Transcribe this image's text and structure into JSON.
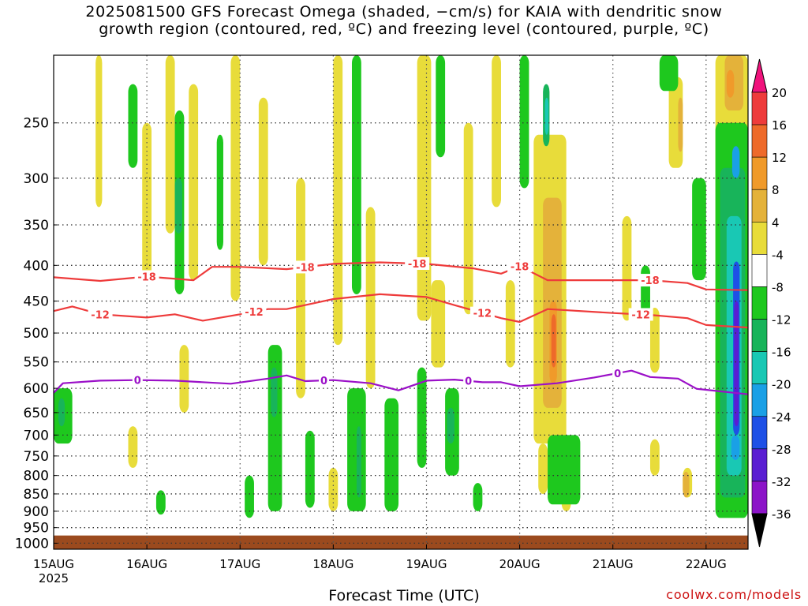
{
  "title": {
    "line1": "2025081500 GFS Forecast Omega (shaded, −cm/s) for KAIA with dendritic snow",
    "line2": "growth region (contoured, red, ºC) and freezing level (contoured, purple, ºC)"
  },
  "xlabel": "Forecast Time (UTC)",
  "credit": "coolwx.com/models",
  "chart_data": {
    "type": "heatmap",
    "title": "2025081500 GFS Forecast Omega (shaded, −cm/s) for KAIA with dendritic snow growth region (contoured, red, ºC) and freezing level (contoured, purple, ºC)",
    "xlabel": "Forecast Time (UTC)",
    "ylabel": "",
    "x_ticks": [
      {
        "label": "15AUG",
        "sub": "2025",
        "day": 0
      },
      {
        "label": "16AUG",
        "day": 1
      },
      {
        "label": "17AUG",
        "day": 2
      },
      {
        "label": "18AUG",
        "day": 3
      },
      {
        "label": "19AUG",
        "day": 4
      },
      {
        "label": "20AUG",
        "day": 5
      },
      {
        "label": "21AUG",
        "day": 6
      },
      {
        "label": "22AUG",
        "day": 7
      }
    ],
    "xlim_days": [
      0,
      7.45
    ],
    "y_ticks": [
      250,
      300,
      350,
      400,
      450,
      500,
      550,
      600,
      650,
      700,
      750,
      800,
      850,
      900,
      950,
      1000
    ],
    "ylim_hpa": [
      200,
      1020
    ],
    "y_scale": "log-pressure, inverted",
    "grid": true,
    "terrain_below_hpa": 975,
    "colorbar": {
      "labels": [
        "20",
        "16",
        "12",
        "8",
        "4",
        "-4",
        "-8",
        "-12",
        "-16",
        "-20",
        "-24",
        "-28",
        "-32",
        "-36"
      ],
      "colors": [
        "#f0137c",
        "#ee3b3b",
        "#ee6a2a",
        "#f09a2a",
        "#e4b23a",
        "#e8dc3a",
        "#ffffff",
        "#1ec81e",
        "#18b45a",
        "#19c8b4",
        "#1aa0e6",
        "#1e50e6",
        "#5a1ed2",
        "#8c14c8",
        "#a0a0a0",
        "#000000"
      ]
    },
    "contours": [
      {
        "label": "-18",
        "color": "#ee3b3b",
        "label_days": [
          1.0,
          2.7,
          3.9,
          5.0,
          6.4
        ],
        "points": [
          [
            0,
            416
          ],
          [
            0.5,
            421
          ],
          [
            1.0,
            415
          ],
          [
            1.5,
            420
          ],
          [
            1.7,
            402
          ],
          [
            2.0,
            402
          ],
          [
            2.5,
            405
          ],
          [
            3.0,
            398
          ],
          [
            3.5,
            396
          ],
          [
            4.0,
            398
          ],
          [
            4.5,
            404
          ],
          [
            4.8,
            411
          ],
          [
            5.0,
            401
          ],
          [
            5.3,
            420
          ],
          [
            6.0,
            420
          ],
          [
            6.4,
            420
          ],
          [
            6.8,
            424
          ],
          [
            7.0,
            433
          ],
          [
            7.45,
            434
          ]
        ]
      },
      {
        "label": "-12",
        "color": "#ee3b3b",
        "label_days": [
          0.5,
          2.15,
          4.6,
          6.3
        ],
        "points": [
          [
            0,
            465
          ],
          [
            0.2,
            458
          ],
          [
            0.5,
            470
          ],
          [
            1.0,
            475
          ],
          [
            1.3,
            470
          ],
          [
            1.6,
            480
          ],
          [
            2.0,
            470
          ],
          [
            2.3,
            462
          ],
          [
            2.5,
            462
          ],
          [
            3.0,
            447
          ],
          [
            3.5,
            440
          ],
          [
            4.0,
            444
          ],
          [
            4.3,
            456
          ],
          [
            4.8,
            476
          ],
          [
            5.0,
            482
          ],
          [
            5.3,
            462
          ],
          [
            6.0,
            468
          ],
          [
            6.4,
            471
          ],
          [
            6.8,
            476
          ],
          [
            7.0,
            487
          ],
          [
            7.45,
            491
          ]
        ]
      },
      {
        "label": "0",
        "color": "#9b10c8",
        "label_days": [
          0.9,
          2.9,
          4.45,
          6.05
        ],
        "points": [
          [
            0,
            609
          ],
          [
            0.1,
            590
          ],
          [
            0.5,
            585
          ],
          [
            0.9,
            584
          ],
          [
            1.3,
            585
          ],
          [
            1.9,
            591
          ],
          [
            2.3,
            581
          ],
          [
            2.5,
            575
          ],
          [
            2.7,
            586
          ],
          [
            3.0,
            584
          ],
          [
            3.4,
            590
          ],
          [
            3.7,
            604
          ],
          [
            4.0,
            585
          ],
          [
            4.3,
            583
          ],
          [
            4.6,
            588
          ],
          [
            4.8,
            588
          ],
          [
            5.0,
            596
          ],
          [
            5.4,
            590
          ],
          [
            5.8,
            579
          ],
          [
            6.2,
            566
          ],
          [
            6.4,
            578
          ],
          [
            6.7,
            581
          ],
          [
            6.9,
            601
          ],
          [
            7.0,
            603
          ],
          [
            7.45,
            612
          ]
        ]
      }
    ],
    "omega_regions": [
      {
        "bin": "4 to 8",
        "d0": 0.45,
        "d1": 0.52,
        "p0": 200,
        "p1": 330
      },
      {
        "bin": "4 to 8",
        "d0": 0.95,
        "d1": 1.05,
        "p0": 250,
        "p1": 420
      },
      {
        "bin": "4 to 8",
        "d0": 1.2,
        "d1": 1.3,
        "p0": 200,
        "p1": 360
      },
      {
        "bin": "4 to 8",
        "d0": 1.45,
        "d1": 1.55,
        "p0": 220,
        "p1": 420
      },
      {
        "bin": "4 to 8",
        "d0": 1.9,
        "d1": 2.0,
        "p0": 200,
        "p1": 450
      },
      {
        "bin": "4 to 8",
        "d0": 2.2,
        "d1": 2.3,
        "p0": 230,
        "p1": 400
      },
      {
        "bin": "4 to 8",
        "d0": 2.6,
        "d1": 2.7,
        "p0": 300,
        "p1": 620
      },
      {
        "bin": "4 to 8",
        "d0": 3.0,
        "d1": 3.1,
        "p0": 200,
        "p1": 520
      },
      {
        "bin": "4 to 8",
        "d0": 3.35,
        "d1": 3.45,
        "p0": 330,
        "p1": 600
      },
      {
        "bin": "4 to 8",
        "d0": 3.9,
        "d1": 4.05,
        "p0": 200,
        "p1": 480
      },
      {
        "bin": "4 to 8",
        "d0": 4.05,
        "d1": 4.2,
        "p0": 420,
        "p1": 560
      },
      {
        "bin": "4 to 8",
        "d0": 4.4,
        "d1": 4.5,
        "p0": 250,
        "p1": 470
      },
      {
        "bin": "4 to 8",
        "d0": 4.7,
        "d1": 4.8,
        "p0": 200,
        "p1": 330
      },
      {
        "bin": "4 to 8",
        "d0": 4.85,
        "d1": 4.95,
        "p0": 420,
        "p1": 560
      },
      {
        "bin": "4 to 8",
        "d0": 5.15,
        "d1": 5.5,
        "p0": 260,
        "p1": 720
      },
      {
        "bin": "4 to 8",
        "d0": 6.1,
        "d1": 6.2,
        "p0": 340,
        "p1": 480
      },
      {
        "bin": "4 to 8",
        "d0": 6.4,
        "d1": 6.5,
        "p0": 460,
        "p1": 570
      },
      {
        "bin": "4 to 8",
        "d0": 6.6,
        "d1": 6.75,
        "p0": 215,
        "p1": 290
      },
      {
        "bin": "4 to 8",
        "d0": 7.1,
        "d1": 7.45,
        "p0": 200,
        "p1": 860
      },
      {
        "bin": "4 to 8",
        "d0": 1.35,
        "d1": 1.45,
        "p0": 520,
        "p1": 650
      },
      {
        "bin": "4 to 8",
        "d0": 0.8,
        "d1": 0.9,
        "p0": 680,
        "p1": 780
      },
      {
        "bin": "4 to 8",
        "d0": 2.95,
        "d1": 3.05,
        "p0": 780,
        "p1": 900
      },
      {
        "bin": "4 to 8",
        "d0": 5.2,
        "d1": 5.3,
        "p0": 720,
        "p1": 850
      },
      {
        "bin": "4 to 8",
        "d0": 5.45,
        "d1": 5.55,
        "p0": 830,
        "p1": 900
      },
      {
        "bin": "4 to 8",
        "d0": 6.4,
        "d1": 6.5,
        "p0": 710,
        "p1": 800
      },
      {
        "bin": "4 to 8",
        "d0": 6.75,
        "d1": 6.85,
        "p0": 780,
        "p1": 860
      },
      {
        "bin": "8 to 12",
        "d0": 5.25,
        "d1": 5.45,
        "p0": 320,
        "p1": 640
      },
      {
        "bin": "8 to 12",
        "d0": 6.7,
        "d1": 6.75,
        "p0": 230,
        "p1": 275
      },
      {
        "bin": "8 to 12",
        "d0": 7.2,
        "d1": 7.4,
        "p0": 200,
        "p1": 240
      },
      {
        "bin": "8 to 12",
        "d0": 6.75,
        "d1": 6.82,
        "p0": 790,
        "p1": 860
      },
      {
        "bin": "12 to 16",
        "d0": 5.32,
        "d1": 5.4,
        "p0": 450,
        "p1": 590
      },
      {
        "bin": "12 to 16",
        "d0": 7.22,
        "d1": 7.3,
        "p0": 210,
        "p1": 230
      },
      {
        "bin": "16 to 20",
        "d0": 5.34,
        "d1": 5.39,
        "p0": 470,
        "p1": 560
      },
      {
        "bin": "-8 to -4",
        "d0": 0.0,
        "d1": 0.2,
        "p0": 600,
        "p1": 720
      },
      {
        "bin": "-8 to -4",
        "d0": 0.8,
        "d1": 0.9,
        "p0": 220,
        "p1": 290
      },
      {
        "bin": "-8 to -4",
        "d0": 1.1,
        "d1": 1.2,
        "p0": 840,
        "p1": 910
      },
      {
        "bin": "-8 to -4",
        "d0": 1.3,
        "d1": 1.4,
        "p0": 240,
        "p1": 440
      },
      {
        "bin": "-8 to -4",
        "d0": 1.75,
        "d1": 1.82,
        "p0": 260,
        "p1": 380
      },
      {
        "bin": "-8 to -4",
        "d0": 2.05,
        "d1": 2.15,
        "p0": 800,
        "p1": 920
      },
      {
        "bin": "-8 to -4",
        "d0": 2.3,
        "d1": 2.45,
        "p0": 520,
        "p1": 900
      },
      {
        "bin": "-8 to -4",
        "d0": 2.7,
        "d1": 2.8,
        "p0": 690,
        "p1": 890
      },
      {
        "bin": "-8 to -4",
        "d0": 3.2,
        "d1": 3.3,
        "p0": 200,
        "p1": 440
      },
      {
        "bin": "-8 to -4",
        "d0": 3.15,
        "d1": 3.35,
        "p0": 600,
        "p1": 900
      },
      {
        "bin": "-8 to -4",
        "d0": 3.55,
        "d1": 3.7,
        "p0": 620,
        "p1": 900
      },
      {
        "bin": "-8 to -4",
        "d0": 3.9,
        "d1": 4.0,
        "p0": 560,
        "p1": 780
      },
      {
        "bin": "-8 to -4",
        "d0": 4.1,
        "d1": 4.2,
        "p0": 200,
        "p1": 280
      },
      {
        "bin": "-8 to -4",
        "d0": 4.2,
        "d1": 4.35,
        "p0": 600,
        "p1": 800
      },
      {
        "bin": "-8 to -4",
        "d0": 4.5,
        "d1": 4.6,
        "p0": 820,
        "p1": 900
      },
      {
        "bin": "-8 to -4",
        "d0": 5.0,
        "d1": 5.1,
        "p0": 200,
        "p1": 310
      },
      {
        "bin": "-8 to -4",
        "d0": 5.3,
        "d1": 5.65,
        "p0": 700,
        "p1": 880
      },
      {
        "bin": "-8 to -4",
        "d0": 6.5,
        "d1": 6.7,
        "p0": 200,
        "p1": 225
      },
      {
        "bin": "-8 to -4",
        "d0": 6.3,
        "d1": 6.4,
        "p0": 400,
        "p1": 470
      },
      {
        "bin": "-8 to -4",
        "d0": 6.85,
        "d1": 7.0,
        "p0": 300,
        "p1": 420
      },
      {
        "bin": "-8 to -4",
        "d0": 7.1,
        "d1": 7.45,
        "p0": 250,
        "p1": 920
      },
      {
        "bin": "-12 to -8",
        "d0": 0.05,
        "d1": 0.12,
        "p0": 620,
        "p1": 680
      },
      {
        "bin": "-12 to -8",
        "d0": 1.3,
        "d1": 1.38,
        "p0": 300,
        "p1": 360
      },
      {
        "bin": "-12 to -8",
        "d0": 2.33,
        "d1": 2.4,
        "p0": 560,
        "p1": 660
      },
      {
        "bin": "-12 to -8",
        "d0": 3.25,
        "d1": 3.3,
        "p0": 680,
        "p1": 860
      },
      {
        "bin": "-12 to -8",
        "d0": 4.22,
        "d1": 4.3,
        "p0": 640,
        "p1": 720
      },
      {
        "bin": "-12 to -8",
        "d0": 5.25,
        "d1": 5.32,
        "p0": 220,
        "p1": 270
      },
      {
        "bin": "-12 to -8",
        "d0": 7.15,
        "d1": 7.42,
        "p0": 290,
        "p1": 860
      },
      {
        "bin": "-16 to -12",
        "d0": 5.27,
        "d1": 5.31,
        "p0": 230,
        "p1": 260
      },
      {
        "bin": "-16 to -12",
        "d0": 7.22,
        "d1": 7.38,
        "p0": 340,
        "p1": 800
      },
      {
        "bin": "-20 to -16",
        "d0": 7.28,
        "d1": 7.36,
        "p0": 270,
        "p1": 300
      },
      {
        "bin": "-20 to -16",
        "d0": 7.27,
        "d1": 7.36,
        "p0": 700,
        "p1": 760
      },
      {
        "bin": "-24 to -20",
        "d0": 7.29,
        "d1": 7.36,
        "p0": 395,
        "p1": 700
      },
      {
        "bin": "-28 to -24",
        "d0": 7.3,
        "d1": 7.35,
        "p0": 450,
        "p1": 680
      }
    ]
  }
}
